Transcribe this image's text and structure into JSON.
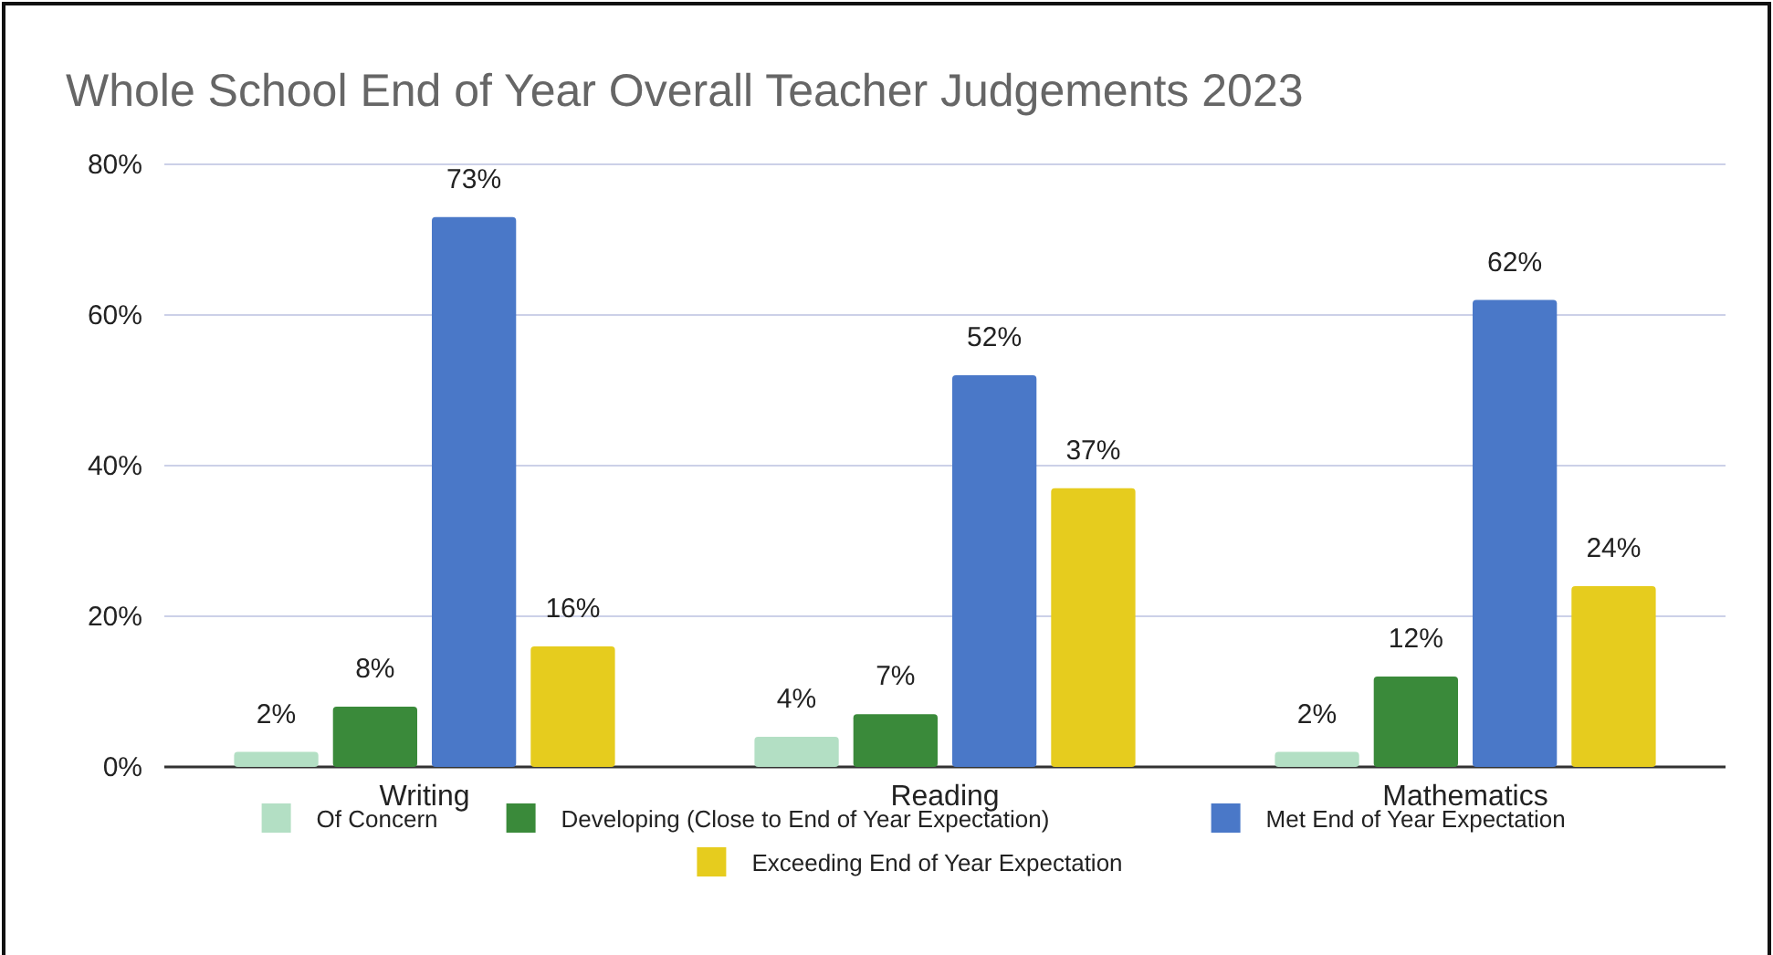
{
  "chart_data": {
    "type": "bar",
    "title": "Whole School End of Year Overall Teacher Judgements 2023",
    "categories": [
      "Writing",
      "Reading",
      "Mathematics"
    ],
    "series": [
      {
        "name": "Of Concern",
        "color": "#b3dfc4",
        "values": [
          2,
          4,
          2
        ],
        "value_labels": [
          "2%",
          "4%",
          "2%"
        ]
      },
      {
        "name": "Developing (Close to End of Year Expectation)",
        "color": "#3a8a3a",
        "values": [
          8,
          7,
          12
        ],
        "value_labels": [
          "8%",
          "7%",
          "12%"
        ]
      },
      {
        "name": "Met End of Year Expectation",
        "color": "#4a78c8",
        "values": [
          73,
          52,
          62
        ],
        "value_labels": [
          "73%",
          "52%",
          "62%"
        ]
      },
      {
        "name": "Exceeding End of Year Expectation",
        "color": "#e6cc1e",
        "values": [
          16,
          37,
          24
        ],
        "value_labels": [
          "16%",
          "37%",
          "24%"
        ]
      }
    ],
    "ylim": [
      0,
      80
    ],
    "yticks": [
      {
        "value": 0,
        "label": "0%"
      },
      {
        "value": 20,
        "label": "20%"
      },
      {
        "value": 40,
        "label": "40%"
      },
      {
        "value": 60,
        "label": "60%"
      },
      {
        "value": 80,
        "label": "80%"
      }
    ],
    "grid": "y",
    "legend": "bottom"
  }
}
